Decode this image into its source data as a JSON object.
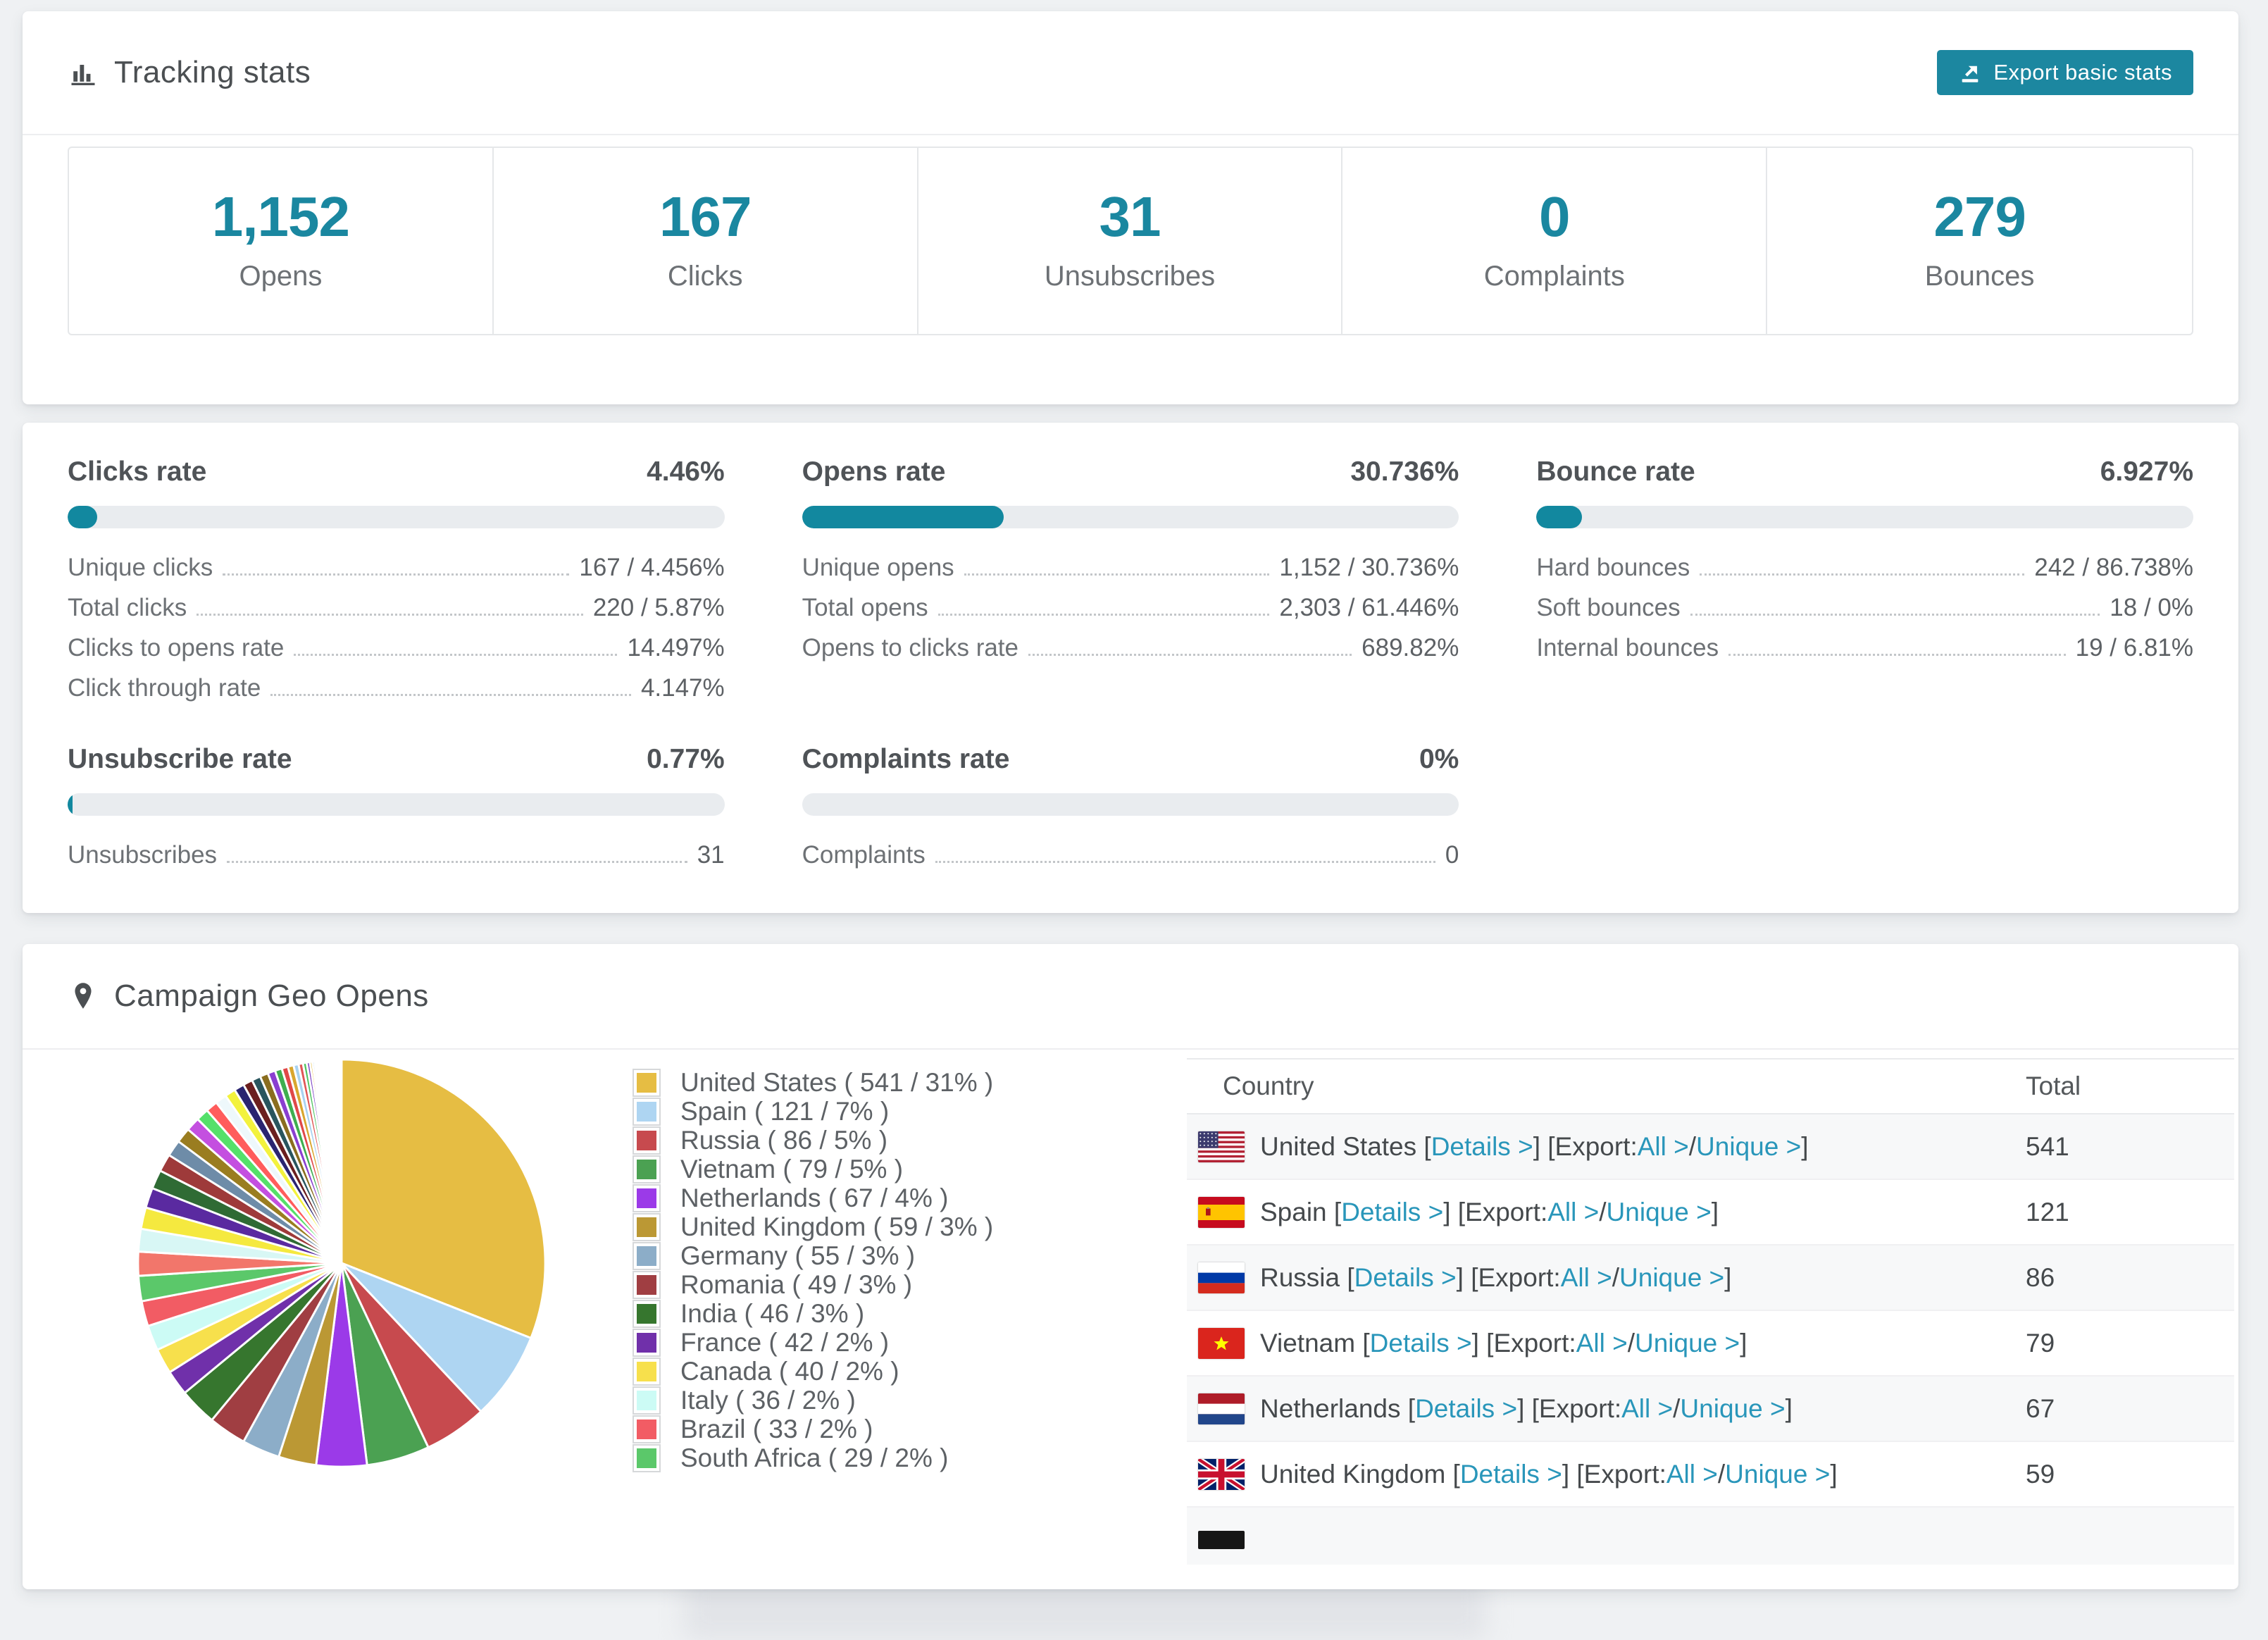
{
  "colors": {
    "accent_teal": "#1c87a0",
    "stat_number_teal": "#1a87a0",
    "link_teal": "#2996ba",
    "bar_track": "#e9ecef",
    "bar_fill": "#12889f",
    "page_bg": "#eff1f3",
    "table_stripe": "#f7f8f9"
  },
  "header": {
    "title": "Tracking stats",
    "export_label": "Export basic stats"
  },
  "summary_stats": [
    {
      "value": "1,152",
      "label": "Opens"
    },
    {
      "value": "167",
      "label": "Clicks"
    },
    {
      "value": "31",
      "label": "Unsubscribes"
    },
    {
      "value": "0",
      "label": "Complaints"
    },
    {
      "value": "279",
      "label": "Bounces"
    }
  ],
  "rate_sections": [
    {
      "slug": "clicks-rate",
      "title": "Clicks rate",
      "value": "4.46%",
      "percent": 4.46,
      "rows": [
        [
          "Unique clicks",
          "167 / 4.456%"
        ],
        [
          "Total clicks",
          "220 / 5.87%"
        ],
        [
          "Clicks to opens rate",
          "14.497%"
        ],
        [
          "Click through rate",
          "4.147%"
        ]
      ]
    },
    {
      "slug": "opens-rate",
      "title": "Opens rate",
      "value": "30.736%",
      "percent": 30.736,
      "rows": [
        [
          "Unique opens",
          "1,152 / 30.736%"
        ],
        [
          "Total opens",
          "2,303 / 61.446%"
        ],
        [
          "Opens to clicks rate",
          "689.82%"
        ]
      ]
    },
    {
      "slug": "bounce-rate",
      "title": "Bounce rate",
      "value": "6.927%",
      "percent": 6.927,
      "rows": [
        [
          "Hard bounces",
          "242 / 86.738%"
        ],
        [
          "Soft bounces",
          "18 / 0%"
        ],
        [
          "Internal bounces",
          "19 / 6.81%"
        ]
      ]
    },
    {
      "slug": "unsubscribe-rate",
      "title": "Unsubscribe rate",
      "value": "0.77%",
      "percent": 0.77,
      "rows": [
        [
          "Unsubscribes",
          "31"
        ]
      ]
    },
    {
      "slug": "complaints-rate",
      "title": "Complaints rate",
      "value": "0%",
      "percent": 0,
      "rows": [
        [
          "Complaints",
          "0"
        ]
      ]
    }
  ],
  "geo": {
    "title": "Campaign Geo Opens",
    "legend": [
      {
        "label": "United States ( 541 / 31% )",
        "color": "#e6bd43"
      },
      {
        "label": "Spain ( 121 / 7% )",
        "color": "#aed5f2"
      },
      {
        "label": "Russia ( 86 / 5% )",
        "color": "#c74a4e"
      },
      {
        "label": "Vietnam ( 79 / 5% )",
        "color": "#4ba152"
      },
      {
        "label": "Netherlands ( 67 / 4% )",
        "color": "#9b3ae8"
      },
      {
        "label": "United Kingdom ( 59 / 3% )",
        "color": "#bb9834"
      },
      {
        "label": "Germany ( 55 / 3% )",
        "color": "#8cadc8"
      },
      {
        "label": "Romania ( 49 / 3% )",
        "color": "#a03e42"
      },
      {
        "label": "India ( 46 / 3% )",
        "color": "#36762e"
      },
      {
        "label": "France ( 42 / 2% )",
        "color": "#7030aa"
      },
      {
        "label": "Canada ( 40 / 2% )",
        "color": "#f7e04c"
      },
      {
        "label": "Italy ( 36 / 2% )",
        "color": "#ccfbf5"
      },
      {
        "label": "Brazil ( 33 / 2% )",
        "color": "#f25c64"
      },
      {
        "label": "South Africa ( 29 / 2% )",
        "color": "#5bc86a"
      }
    ],
    "table": {
      "headers": [
        "Country",
        "Total"
      ],
      "link_labels": {
        "open": "[",
        "close": "]",
        "details": "Details >",
        "export_prefix": "[Export: ",
        "all": "All >",
        "separator": " / ",
        "unique": "Unique >"
      },
      "rows": [
        {
          "flag": "us",
          "country": "United States",
          "total": "541"
        },
        {
          "flag": "es",
          "country": "Spain",
          "total": "121"
        },
        {
          "flag": "ru",
          "country": "Russia",
          "total": "86"
        },
        {
          "flag": "vn",
          "country": "Vietnam",
          "total": "79"
        },
        {
          "flag": "nl",
          "country": "Netherlands",
          "total": "67"
        },
        {
          "flag": "gb",
          "country": "United Kingdom",
          "total": "59"
        },
        {
          "flag": "de-partial",
          "country": "",
          "total": ""
        }
      ]
    }
  },
  "chart_data": {
    "type": "pie",
    "title": "Campaign Geo Opens",
    "unit": "opens",
    "legend_position": "right",
    "start_angle_deg": -90,
    "direction": "clockwise",
    "labels": [
      "United States",
      "Spain",
      "Russia",
      "Vietnam",
      "Netherlands",
      "United Kingdom",
      "Germany",
      "Romania",
      "India",
      "France",
      "Canada",
      "Italy",
      "Brazil",
      "South Africa"
    ],
    "values": [
      541,
      121,
      86,
      79,
      67,
      59,
      55,
      49,
      46,
      42,
      40,
      36,
      33,
      29
    ],
    "percents": [
      31,
      7,
      5,
      5,
      4,
      3,
      3,
      3,
      3,
      2,
      2,
      2,
      2,
      2
    ],
    "colors": [
      "#e6bd43",
      "#aed5f2",
      "#c74a4e",
      "#4ba152",
      "#9b3ae8",
      "#bb9834",
      "#8cadc8",
      "#a03e42",
      "#36762e",
      "#7030aa",
      "#f7e04c",
      "#ccfbf5",
      "#f25c64",
      "#5bc86a"
    ],
    "other_slices": {
      "note": "long tail of small unlabeled countries, drawn as shrinking slivers",
      "values_pct": [
        1.9,
        1.8,
        1.7,
        1.6,
        1.5,
        1.4,
        1.3,
        1.2,
        1.1,
        1.0,
        0.95,
        0.9,
        0.85,
        0.8,
        0.75,
        0.7,
        0.65,
        0.6,
        0.55,
        0.5,
        0.45,
        0.4,
        0.35,
        0.3,
        0.25,
        0.2,
        0.18,
        0.16,
        0.14,
        0.12,
        0.1,
        0.09,
        0.08,
        0.07,
        0.06,
        0.05,
        0.05,
        0.04,
        0.04,
        0.03,
        0.03,
        0.02
      ],
      "colors": [
        "#f2766b",
        "#d8f7f5",
        "#f5e93f",
        "#5a2aa0",
        "#2f6b34",
        "#9e3a3a",
        "#6e8ca8",
        "#9a7d20",
        "#c44fe0",
        "#55e06a",
        "#ff5c5c",
        "#eef8fb",
        "#f3f23d",
        "#2a2470",
        "#6b1f1f",
        "#29555e",
        "#8a6d1f",
        "#8a3fd0",
        "#3fae4f",
        "#e04848",
        "#d9a62e",
        "#a8d2f0",
        "#e05555",
        "#4fc45f",
        "#7a3fc4",
        "#e6bd43",
        "#aed5f2",
        "#c74a4e",
        "#4ba152",
        "#9b3ae8",
        "#bb9834",
        "#8cadc8",
        "#a03e42",
        "#36762e",
        "#7030aa",
        "#f7e04c",
        "#ccfbf5",
        "#f25c64",
        "#5bc86a",
        "#e6bd43",
        "#c74a4e",
        "#4ba152"
      ]
    }
  }
}
